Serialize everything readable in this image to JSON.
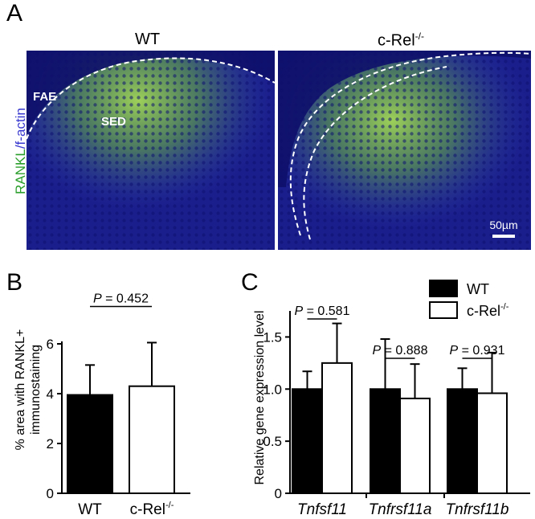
{
  "panel_a": {
    "letter": "A",
    "left_title": "WT",
    "right_title_base": "c-Rel",
    "right_title_sup": "-/-",
    "ylabel_green": "RANKL",
    "ylabel_sep": "/",
    "ylabel_blue": "f-actin",
    "label_fae": "FAE",
    "label_sed": "SED",
    "scalebar": "50µm",
    "colors": {
      "green": "#2a9e2a",
      "blue": "#3a3ad0",
      "tissue_bg": "#1a1e8c",
      "stain": "#9ee04a"
    }
  },
  "chart_data": [
    {
      "panel": "B",
      "type": "bar",
      "ylabel_line1": "% area with RANKL+",
      "ylabel_line2": "immunostaining",
      "categories": [
        "WT",
        "c-Rel"
      ],
      "category_sup": [
        "",
        "-/-"
      ],
      "values": [
        3.95,
        4.3
      ],
      "errors": [
        1.2,
        1.75
      ],
      "fills": [
        "#000000",
        "#ffffff"
      ],
      "ylim": [
        0,
        8
      ],
      "yticks": [
        0,
        2,
        4,
        6
      ],
      "annotation": {
        "p_label": "P",
        "p_value": " = 0.452"
      }
    },
    {
      "panel": "C",
      "type": "bar",
      "ylabel": "Relative gene expression level",
      "categories": [
        "Tnfsf11",
        "Tnfrsf11a",
        "Tnfrsf11b"
      ],
      "series": [
        {
          "name": "WT",
          "fill": "#000000",
          "values": [
            1.0,
            1.0,
            1.0
          ],
          "errors": [
            0.17,
            0.48,
            0.2
          ]
        },
        {
          "name": "c-Rel",
          "name_sup": "-/-",
          "fill": "#ffffff",
          "values": [
            1.25,
            0.91,
            0.96
          ],
          "errors": [
            0.38,
            0.33,
            0.39
          ]
        }
      ],
      "ylim": [
        0,
        1.75
      ],
      "yticks": [
        0,
        0.5,
        1.0,
        1.5
      ],
      "ytick_labels": [
        "0",
        "0.5",
        "1.0",
        "1.5"
      ],
      "annotations": [
        {
          "p_label": "P",
          "p_value": " = 0.581"
        },
        {
          "p_label": "P",
          "p_value": " = 0.888"
        },
        {
          "p_label": "P",
          "p_value": " = 0.931"
        }
      ]
    }
  ],
  "panel_b": {
    "letter": "B"
  },
  "panel_c": {
    "letter": "C"
  }
}
